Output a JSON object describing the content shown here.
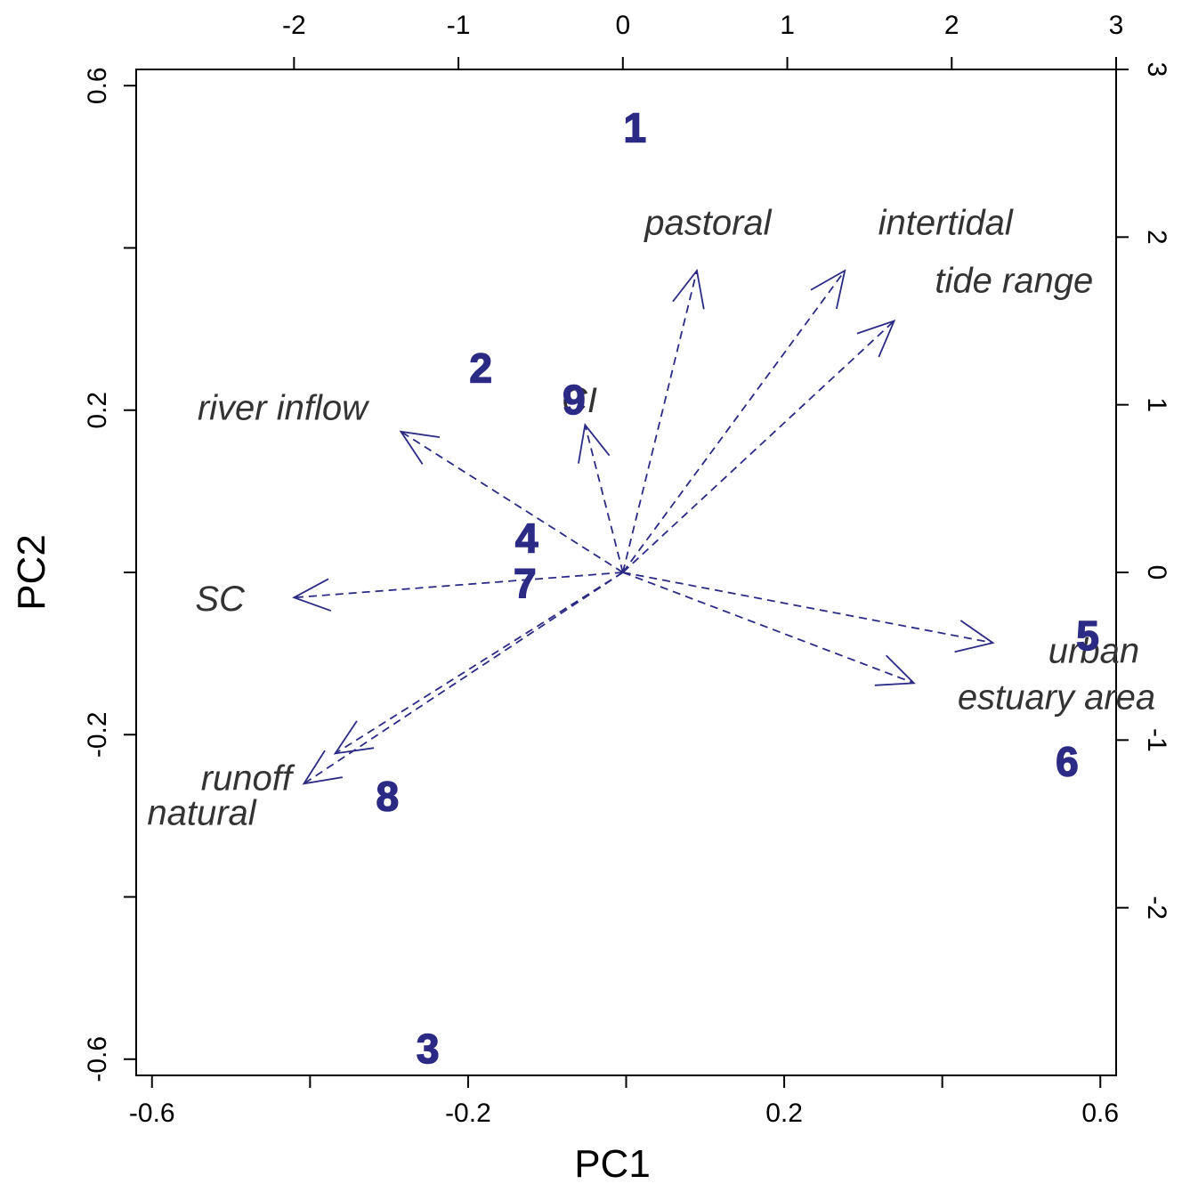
{
  "chart_data": {
    "type": "scatter",
    "subtype": "pca-biplot",
    "title": "",
    "xlabel": "PC1",
    "ylabel": "PC2",
    "xlim": [
      -0.62,
      0.62
    ],
    "ylim": [
      -0.62,
      0.62
    ],
    "x_ticks": [
      -0.6,
      -0.4,
      -0.2,
      0.0,
      0.2,
      0.4,
      0.6
    ],
    "x_tick_labels": [
      "-0.6",
      "",
      "-0.2",
      "",
      "0.2",
      "",
      "0.6"
    ],
    "y_ticks": [
      -0.6,
      -0.4,
      -0.2,
      0.0,
      0.2,
      0.4,
      0.6
    ],
    "y_tick_labels": [
      "-0.6",
      "",
      "-0.2",
      "",
      "0.2",
      "",
      "0.6"
    ],
    "top_xlim": [
      -2.96,
      3.0
    ],
    "top_ticks": [
      -2,
      -1,
      0,
      1,
      2,
      3
    ],
    "top_tick_labels": [
      "-2",
      "-1",
      "0",
      "1",
      "2",
      "3"
    ],
    "right_ylim": [
      -3.0,
      3.0
    ],
    "right_ticks": [
      -2,
      -1,
      0,
      1,
      2,
      3
    ],
    "right_tick_labels": [
      "-2",
      "-1",
      "0",
      "1",
      "2",
      "3"
    ],
    "grid": false,
    "arrow_color": "#2b2a84",
    "point_color": "#2b2a84",
    "observations": [
      {
        "label": "1",
        "x": 0.011,
        "y": 0.548
      },
      {
        "label": "2",
        "x": -0.184,
        "y": 0.252
      },
      {
        "label": "3",
        "x": -0.251,
        "y": -0.587
      },
      {
        "label": "4",
        "x": -0.126,
        "y": 0.042
      },
      {
        "label": "5",
        "x": 0.584,
        "y": -0.078
      },
      {
        "label": "6",
        "x": 0.558,
        "y": -0.233
      },
      {
        "label": "7",
        "x": -0.128,
        "y": -0.013
      },
      {
        "label": "8",
        "x": -0.302,
        "y": -0.276
      },
      {
        "label": "9",
        "x": -0.066,
        "y": 0.213
      }
    ],
    "loadings": [
      {
        "name": "intertidal",
        "x": 1.35,
        "y": 1.8
      },
      {
        "name": "pastoral",
        "x": 0.45,
        "y": 1.8
      },
      {
        "name": "tide range",
        "x": 1.65,
        "y": 1.5
      },
      {
        "name": "river inflow",
        "x": -1.35,
        "y": 0.84
      },
      {
        "name": "CI",
        "x": -0.23,
        "y": 0.88
      },
      {
        "name": "SC",
        "x": -2.0,
        "y": -0.15
      },
      {
        "name": "urban",
        "x": 2.25,
        "y": -0.42
      },
      {
        "name": "estuary area",
        "x": 1.77,
        "y": -0.66
      },
      {
        "name": "runoff",
        "x": -1.75,
        "y": -1.08
      },
      {
        "name": "natural",
        "x": -1.94,
        "y": -1.26
      }
    ]
  }
}
